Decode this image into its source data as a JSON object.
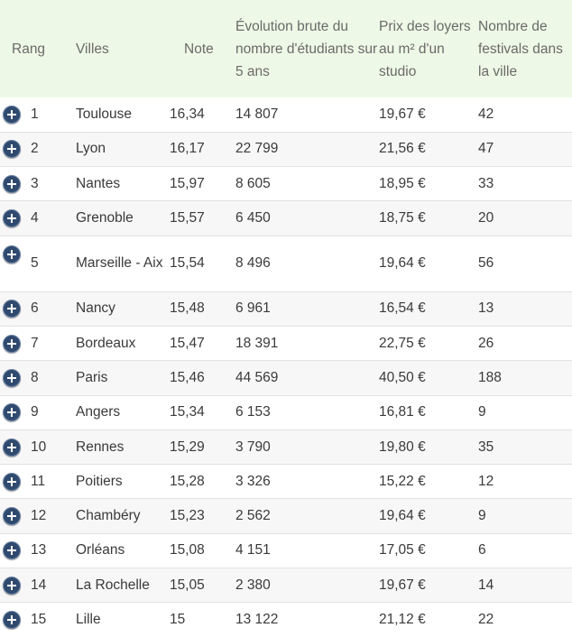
{
  "table": {
    "headers": {
      "rang": "Rang",
      "villes": "Villes",
      "note": "Note",
      "evolution": "Évolution brute du nombre d'étudiants sur 5 ans",
      "prix": "Prix des loyers au m² d'un studio",
      "festivals": "Nombre de festivals dans la ville"
    },
    "rows": [
      {
        "rang": "1",
        "ville": "Toulouse",
        "note": "16,34",
        "evolution": "14 807",
        "prix": "19,67 €",
        "festivals": "42"
      },
      {
        "rang": "2",
        "ville": "Lyon",
        "note": "16,17",
        "evolution": "22 799",
        "prix": "21,56 €",
        "festivals": "47"
      },
      {
        "rang": "3",
        "ville": "Nantes",
        "note": "15,97",
        "evolution": "8 605",
        "prix": "18,95 €",
        "festivals": "33"
      },
      {
        "rang": "4",
        "ville": "Grenoble",
        "note": "15,57",
        "evolution": "6 450",
        "prix": "18,75 €",
        "festivals": "20"
      },
      {
        "rang": "5",
        "ville": "Marseille - Aix",
        "note": "15,54",
        "evolution": "8 496",
        "prix": "19,64 €",
        "festivals": "56"
      },
      {
        "rang": "6",
        "ville": "Nancy",
        "note": "15,48",
        "evolution": "6 961",
        "prix": "16,54 €",
        "festivals": "13"
      },
      {
        "rang": "7",
        "ville": "Bordeaux",
        "note": "15,47",
        "evolution": "18 391",
        "prix": "22,75 €",
        "festivals": "26"
      },
      {
        "rang": "8",
        "ville": "Paris",
        "note": "15,46",
        "evolution": "44 569",
        "prix": "40,50 €",
        "festivals": "188"
      },
      {
        "rang": "9",
        "ville": "Angers",
        "note": "15,34",
        "evolution": "6 153",
        "prix": "16,81 €",
        "festivals": "9"
      },
      {
        "rang": "10",
        "ville": "Rennes",
        "note": "15,29",
        "evolution": "3 790",
        "prix": "19,80 €",
        "festivals": "35"
      },
      {
        "rang": "11",
        "ville": "Poitiers",
        "note": "15,28",
        "evolution": "3 326",
        "prix": "15,22 €",
        "festivals": "12"
      },
      {
        "rang": "12",
        "ville": "Chambéry",
        "note": "15,23",
        "evolution": "2 562",
        "prix": "19,64 €",
        "festivals": "9"
      },
      {
        "rang": "13",
        "ville": "Orléans",
        "note": "15,08",
        "evolution": "4 151",
        "prix": "17,05 €",
        "festivals": "6"
      },
      {
        "rang": "14",
        "ville": "La Rochelle",
        "note": "15,05",
        "evolution": "2 380",
        "prix": "19,67 €",
        "festivals": "14"
      },
      {
        "rang": "15",
        "ville": "Lille",
        "note": "15",
        "evolution": "13 122",
        "prix": "21,12 €",
        "festivals": "22"
      }
    ]
  },
  "icons": {
    "expand": "plus-circle-icon"
  },
  "colors": {
    "header_background": "#eef8e6",
    "expand_icon": "#2f4a6e"
  }
}
